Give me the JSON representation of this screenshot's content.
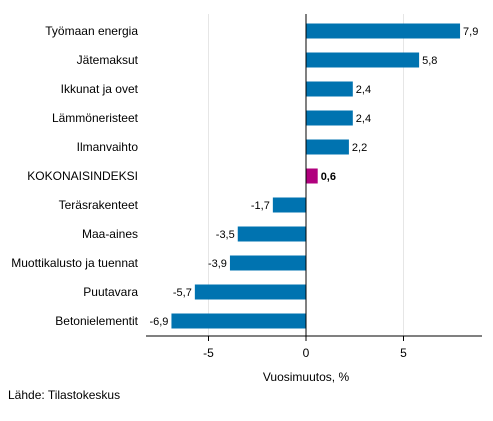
{
  "chart_data": {
    "type": "bar",
    "orientation": "horizontal",
    "categories": [
      "Työmaan energia",
      "Jätemaksut",
      "Ikkunat ja ovet",
      "Lämmöneristeet",
      "Ilmanvaihto",
      "KOKONAISINDEKSI",
      "Teräsrakenteet",
      "Maa-aines",
      "Muottikalusto ja tuennat",
      "Puutavara",
      "Betonielementit"
    ],
    "values": [
      7.9,
      5.8,
      2.4,
      2.4,
      2.2,
      0.6,
      -1.7,
      -3.5,
      -3.9,
      -5.7,
      -6.9
    ],
    "value_labels": [
      "7,9",
      "5,8",
      "2,4",
      "2,4",
      "2,2",
      "0,6",
      "-1,7",
      "-3,5",
      "-3,9",
      "-5,7",
      "-6,9"
    ],
    "highlight_category": "KOKONAISINDEKSI",
    "xlabel": "Vuosimuutos, %",
    "xlim": [
      -8,
      9
    ],
    "xticks": [
      -5,
      0,
      5
    ],
    "xtick_labels": [
      "-5",
      "0",
      "5"
    ],
    "grid": "vertical",
    "legend": "none",
    "colors": {
      "bar": "#0073b0",
      "highlight": "#b0007d",
      "grid": "#e6e6e6",
      "axis": "#000000"
    }
  },
  "source": "Lähde: Tilastokeskus"
}
